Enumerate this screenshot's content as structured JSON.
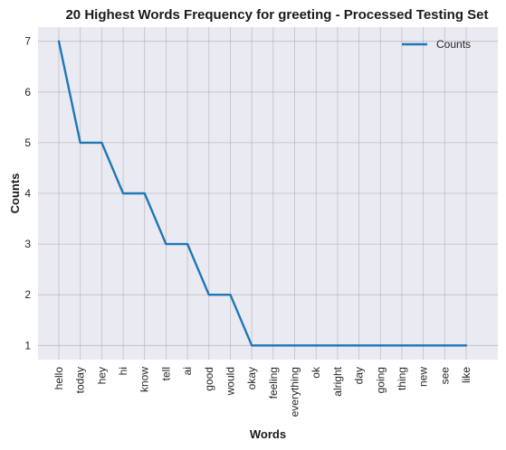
{
  "chart_data": {
    "type": "line",
    "title": "20 Highest Words Frequency for greeting - Processed Testing Set",
    "xlabel": "Words",
    "ylabel": "Counts",
    "categories": [
      "hello",
      "today",
      "hey",
      "hi",
      "know",
      "tell",
      "ai",
      "good",
      "would",
      "okay",
      "feeling",
      "everything",
      "ok",
      "alright",
      "day",
      "going",
      "thing",
      "new",
      "see",
      "like"
    ],
    "series": [
      {
        "name": "Counts",
        "values": [
          7,
          5,
          5,
          4,
          4,
          3,
          3,
          2,
          2,
          1,
          1,
          1,
          1,
          1,
          1,
          1,
          1,
          1,
          1,
          1
        ]
      }
    ],
    "ylim": [
      0.72,
      7.28
    ],
    "yticks": [
      1,
      2,
      3,
      4,
      5,
      6,
      7
    ],
    "grid": true,
    "legend_position": "top-right",
    "colors": {
      "series": "#1f77b4",
      "plot_bg": "#eaeaf2",
      "grid": "#b0b0b0"
    }
  }
}
